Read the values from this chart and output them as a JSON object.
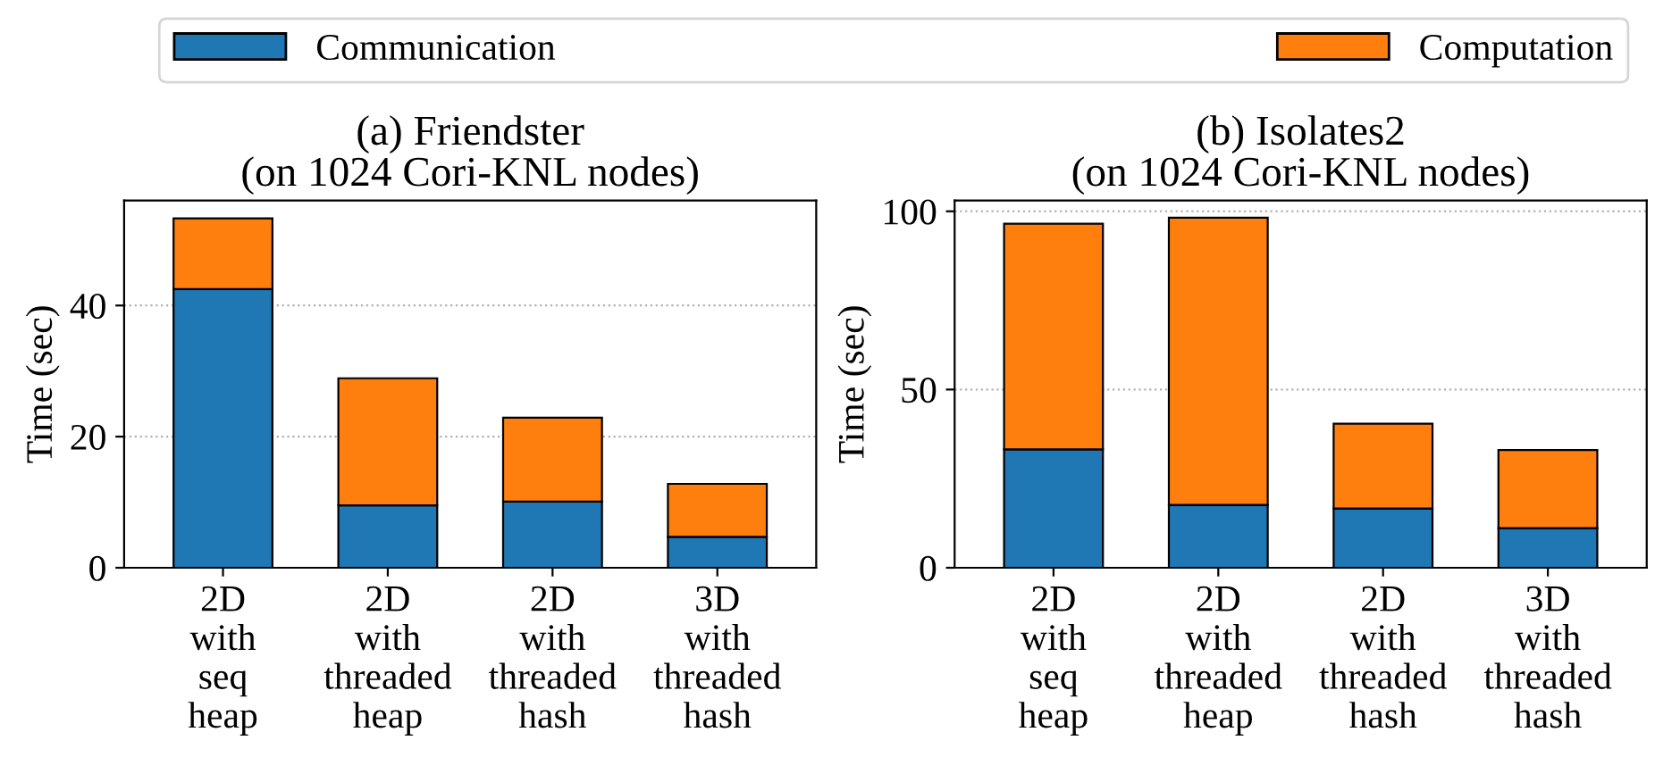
{
  "chart_data": [
    {
      "type": "bar",
      "stacked": true,
      "title": "(a) Friendster\n(on 1024 Cori-KNL nodes)",
      "ylabel": "Time (sec)",
      "categories": [
        "2D\nwith\nseq\nheap",
        "2D\nwith\nthreaded\nheap",
        "2D\nwith\nthreaded\nhash",
        "3D\nwith\nthreaded\nhash"
      ],
      "series": [
        {
          "name": "Communication",
          "color": "#1f77b4",
          "values": [
            42.5,
            9.5,
            10.1,
            4.7
          ]
        },
        {
          "name": "Computation",
          "color": "#ff7f0e",
          "values": [
            10.8,
            19.4,
            12.8,
            8.1
          ]
        }
      ],
      "ylim": [
        0,
        56
      ],
      "yticks": [
        0,
        20,
        40
      ],
      "grid": "y",
      "legend": "top"
    },
    {
      "type": "bar",
      "stacked": true,
      "title": "(b) Isolates2\n(on 1024 Cori-KNL nodes)",
      "ylabel": "Time (sec)",
      "categories": [
        "2D\nwith\nseq\nheap",
        "2D\nwith\nthreaded\nheap",
        "2D\nwith\nthreaded\nhash",
        "3D\nwith\nthreaded\nhash"
      ],
      "series": [
        {
          "color": "#1f77b4",
          "values": [
            33.2,
            17.6,
            16.6,
            11.1
          ]
        },
        {
          "color": "#ff7f0e",
          "values": [
            63.3,
            80.6,
            23.8,
            21.9
          ]
        }
      ],
      "ylim": [
        0,
        103
      ],
      "yticks": [
        0,
        50,
        100
      ],
      "grid": "y"
    }
  ]
}
